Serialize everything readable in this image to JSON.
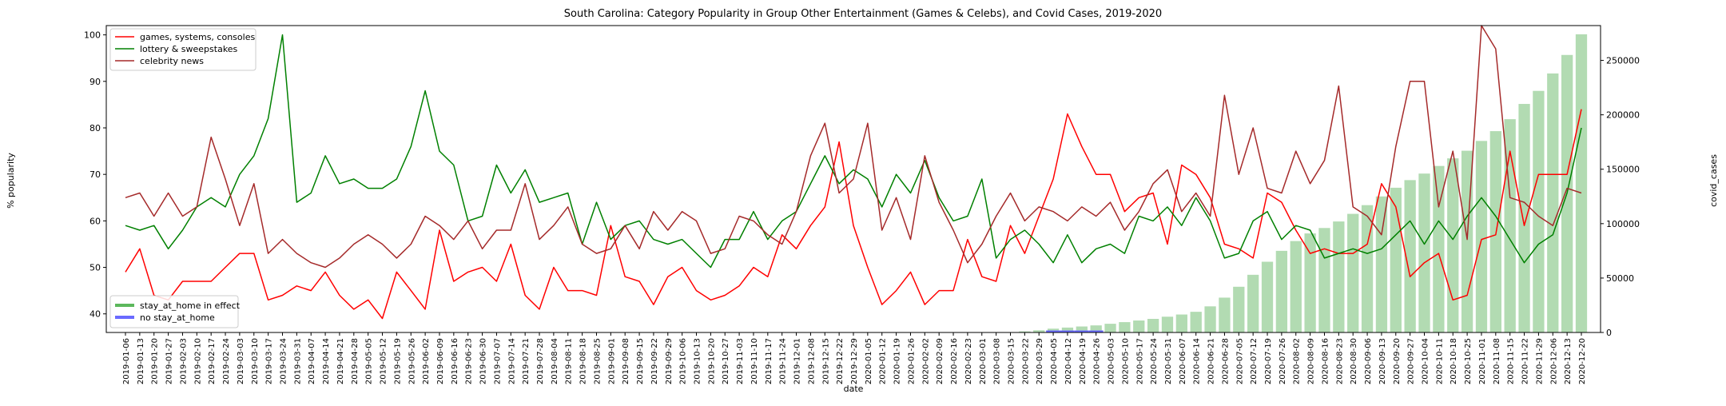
{
  "chart_data": {
    "type": "line",
    "title": "South Carolina: Category Popularity in Group Other Entertainment (Games & Celebs), and Covid Cases, 2019-2020",
    "xlabel": "date",
    "ylabel": "% popularity",
    "y2label": "covid_cases",
    "ylim": [
      36,
      102
    ],
    "y2lim": [
      0,
      282000
    ],
    "yticks": [
      40,
      50,
      60,
      70,
      80,
      90,
      100
    ],
    "y2ticks": [
      0,
      50000,
      100000,
      150000,
      200000,
      250000
    ],
    "x": [
      "2019-01-06",
      "2019-01-13",
      "2019-01-20",
      "2019-01-27",
      "2019-02-03",
      "2019-02-10",
      "2019-02-17",
      "2019-02-24",
      "2019-03-03",
      "2019-03-10",
      "2019-03-17",
      "2019-03-24",
      "2019-03-31",
      "2019-04-07",
      "2019-04-14",
      "2019-04-21",
      "2019-04-28",
      "2019-05-05",
      "2019-05-12",
      "2019-05-19",
      "2019-05-26",
      "2019-06-02",
      "2019-06-09",
      "2019-06-16",
      "2019-06-23",
      "2019-06-30",
      "2019-07-07",
      "2019-07-14",
      "2019-07-21",
      "2019-07-28",
      "2019-08-04",
      "2019-08-11",
      "2019-08-18",
      "2019-08-25",
      "2019-09-01",
      "2019-09-08",
      "2019-09-15",
      "2019-09-22",
      "2019-09-29",
      "2019-10-06",
      "2019-10-13",
      "2019-10-20",
      "2019-10-27",
      "2019-11-03",
      "2019-11-10",
      "2019-11-17",
      "2019-11-24",
      "2019-12-01",
      "2019-12-08",
      "2019-12-15",
      "2019-12-22",
      "2019-12-29",
      "2020-01-05",
      "2020-01-12",
      "2020-01-19",
      "2020-01-26",
      "2020-02-02",
      "2020-02-09",
      "2020-02-16",
      "2020-02-23",
      "2020-03-01",
      "2020-03-08",
      "2020-03-15",
      "2020-03-22",
      "2020-03-29",
      "2020-04-05",
      "2020-04-12",
      "2020-04-19",
      "2020-04-26",
      "2020-05-03",
      "2020-05-10",
      "2020-05-17",
      "2020-05-24",
      "2020-05-31",
      "2020-06-07",
      "2020-06-14",
      "2020-06-21",
      "2020-06-28",
      "2020-07-05",
      "2020-07-12",
      "2020-07-19",
      "2020-07-26",
      "2020-08-02",
      "2020-08-09",
      "2020-08-16",
      "2020-08-23",
      "2020-08-30",
      "2020-09-06",
      "2020-09-13",
      "2020-09-20",
      "2020-09-27",
      "2020-10-04",
      "2020-10-11",
      "2020-10-18",
      "2020-10-25",
      "2020-11-01",
      "2020-11-08",
      "2020-11-15",
      "2020-11-22",
      "2020-11-29",
      "2020-12-06",
      "2020-12-13",
      "2020-12-20"
    ],
    "xtick_labels": [
      "2019-01-06",
      "2019-01-13",
      "2019-01-20",
      "2019-01-27",
      "2019-02-03",
      "2019-02-10",
      "2019-02-17",
      "2019-02-24",
      "2019-03-03",
      "2019-03-10",
      "2019-03-17",
      "2019-03-24",
      "2019-03-31",
      "2019-04-07",
      "2019-04-14",
      "2019-04-21",
      "2019-04-28",
      "2019-05-05",
      "2019-05-12",
      "2019-05-19",
      "2019-05-26",
      "2019-06-02",
      "2019-06-09",
      "2019-06-16",
      "2019-06-23",
      "2019-06-30",
      "2019-07-07",
      "2019-07-14",
      "2019-07-21",
      "2019-07-28",
      "2019-08-04",
      "2019-08-11",
      "2019-08-18",
      "2019-08-25",
      "2019-09-01",
      "2019-09-08",
      "2019-09-15",
      "2019-09-22",
      "2019-09-29",
      "2019-10-06",
      "2019-10-13",
      "2019-10-20",
      "2019-10-27",
      "2019-11-03",
      "2019-11-10",
      "2019-11-17",
      "2019-11-24",
      "2019-12-01",
      "2019-12-08",
      "2019-12-15",
      "2019-12-22",
      "2019-12-29",
      "2020-01-05",
      "2020-01-12",
      "2020-01-19",
      "2020-01-26",
      "2020-02-02",
      "2020-02-09",
      "2020-02-16",
      "2020-02-23",
      "2020-03-01",
      "2020-03-08",
      "2020-03-15",
      "2020-03-22",
      "2020-03-29",
      "2020-04-05",
      "2020-04-12",
      "2020-04-19",
      "2020-04-26",
      "2020-05-03",
      "2020-05-10",
      "2020-05-17",
      "2020-05-24",
      "2020-05-31",
      "2020-06-07",
      "2020-06-14",
      "2020-06-21",
      "2020-06-28",
      "2020-07-05",
      "2020-07-12",
      "2020-07-19",
      "2020-07-26",
      "2020-08-02",
      "2020-08-09",
      "2020-08-16",
      "2020-08-23",
      "2020-08-30",
      "2020-09-06",
      "2020-09-13",
      "2020-09-20",
      "2020-09-27",
      "2020-10-04",
      "2020-10-11",
      "2020-10-18",
      "2020-10-25",
      "2020-11-01",
      "2020-11-08",
      "2020-11-15",
      "2020-11-22",
      "2020-11-29",
      "2020-12-06",
      "2020-12-13",
      "2020-12-20"
    ],
    "series": [
      {
        "name": "games, systems, consoles",
        "color": "#ff0000",
        "axis": "left",
        "values": [
          49,
          54,
          44,
          43,
          47,
          47,
          47,
          50,
          53,
          53,
          43,
          44,
          46,
          45,
          49,
          44,
          41,
          43,
          39,
          49,
          45,
          41,
          58,
          47,
          49,
          50,
          47,
          55,
          44,
          41,
          50,
          45,
          45,
          44,
          59,
          48,
          47,
          42,
          48,
          50,
          45,
          43,
          44,
          46,
          50,
          48,
          57,
          54,
          59,
          63,
          77,
          59,
          50,
          42,
          45,
          49,
          42,
          45,
          45,
          56,
          48,
          47,
          59,
          53,
          61,
          69,
          83,
          76,
          70,
          70,
          62,
          65,
          66,
          55,
          72,
          70,
          65,
          55,
          54,
          52,
          66,
          64,
          58,
          53,
          54,
          53,
          53,
          55,
          68,
          63,
          48,
          51,
          53,
          43,
          44,
          56,
          57,
          75,
          59,
          70,
          70,
          70,
          84
        ]
      },
      {
        "name": "lottery & sweepstakes",
        "color": "#008000",
        "axis": "left",
        "values": [
          59,
          58,
          59,
          54,
          58,
          63,
          65,
          63,
          70,
          74,
          82,
          100,
          64,
          66,
          74,
          68,
          69,
          67,
          67,
          69,
          76,
          88,
          75,
          72,
          60,
          61,
          72,
          66,
          71,
          64,
          65,
          66,
          55,
          64,
          56,
          59,
          60,
          56,
          55,
          56,
          53,
          50,
          56,
          56,
          62,
          56,
          60,
          62,
          68,
          74,
          68,
          71,
          69,
          63,
          70,
          66,
          73,
          65,
          60,
          61,
          69,
          52,
          56,
          58,
          55,
          51,
          57,
          51,
          54,
          55,
          53,
          61,
          60,
          63,
          59,
          65,
          60,
          52,
          53,
          60,
          62,
          56,
          59,
          58,
          52,
          53,
          54,
          53,
          54,
          57,
          60,
          55,
          60,
          56,
          61,
          65,
          61,
          56,
          51,
          55,
          57,
          66,
          80
        ]
      },
      {
        "name": "celebrity news",
        "color": "#a52a2a",
        "axis": "left",
        "values": [
          65,
          66,
          61,
          66,
          61,
          63,
          78,
          69,
          59,
          68,
          53,
          56,
          53,
          51,
          50,
          52,
          55,
          57,
          55,
          52,
          55,
          61,
          59,
          56,
          60,
          54,
          58,
          58,
          68,
          56,
          59,
          63,
          55,
          53,
          54,
          59,
          54,
          62,
          58,
          62,
          60,
          53,
          54,
          61,
          60,
          57,
          55,
          62,
          74,
          81,
          66,
          69,
          81,
          58,
          65,
          56,
          74,
          64,
          58,
          51,
          55,
          61,
          66,
          60,
          63,
          62,
          60,
          63,
          61,
          64,
          58,
          62,
          68,
          71,
          62,
          66,
          61,
          87,
          70,
          80,
          67,
          66,
          75,
          68,
          73,
          89,
          63,
          61,
          57,
          76,
          90,
          90,
          63,
          75,
          56,
          102,
          97,
          65,
          64,
          61,
          59,
          67,
          66
        ]
      }
    ],
    "bars": {
      "name": "covid_cases",
      "color": "#88c888",
      "axis": "right",
      "values": [
        0,
        0,
        0,
        0,
        0,
        0,
        0,
        0,
        0,
        0,
        0,
        0,
        0,
        0,
        0,
        0,
        0,
        0,
        0,
        0,
        0,
        0,
        0,
        0,
        0,
        0,
        0,
        0,
        0,
        0,
        0,
        0,
        0,
        0,
        0,
        0,
        0,
        0,
        0,
        0,
        0,
        0,
        0,
        0,
        0,
        0,
        0,
        0,
        0,
        0,
        0,
        0,
        0,
        0,
        0,
        0,
        0,
        0,
        0,
        0,
        0,
        0,
        300,
        1000,
        2000,
        3500,
        4500,
        5500,
        6500,
        8000,
        9500,
        11000,
        12500,
        14500,
        16500,
        19000,
        24000,
        32000,
        42000,
        53000,
        65000,
        75000,
        84000,
        91000,
        96000,
        102000,
        109000,
        117000,
        125000,
        133000,
        140000,
        146000,
        153000,
        160000,
        167000,
        176000,
        185000,
        196000,
        210000,
        222000,
        238000,
        255000,
        274000
      ]
    },
    "stay_at_home_weeks": [
      "2020-04-05",
      "2020-04-12",
      "2020-04-19",
      "2020-04-26"
    ],
    "legend_main": {
      "placement": "top-left",
      "entries": [
        "games, systems, consoles",
        "lottery & sweepstakes",
        "celebrity news"
      ]
    },
    "legend_policy": {
      "placement": "bottom-left",
      "entries": [
        {
          "label": "stay_at_home in effect",
          "color": "#5cb85c"
        },
        {
          "label": "no stay_at_home",
          "color": "#6a6aff"
        }
      ]
    },
    "grid": false
  }
}
